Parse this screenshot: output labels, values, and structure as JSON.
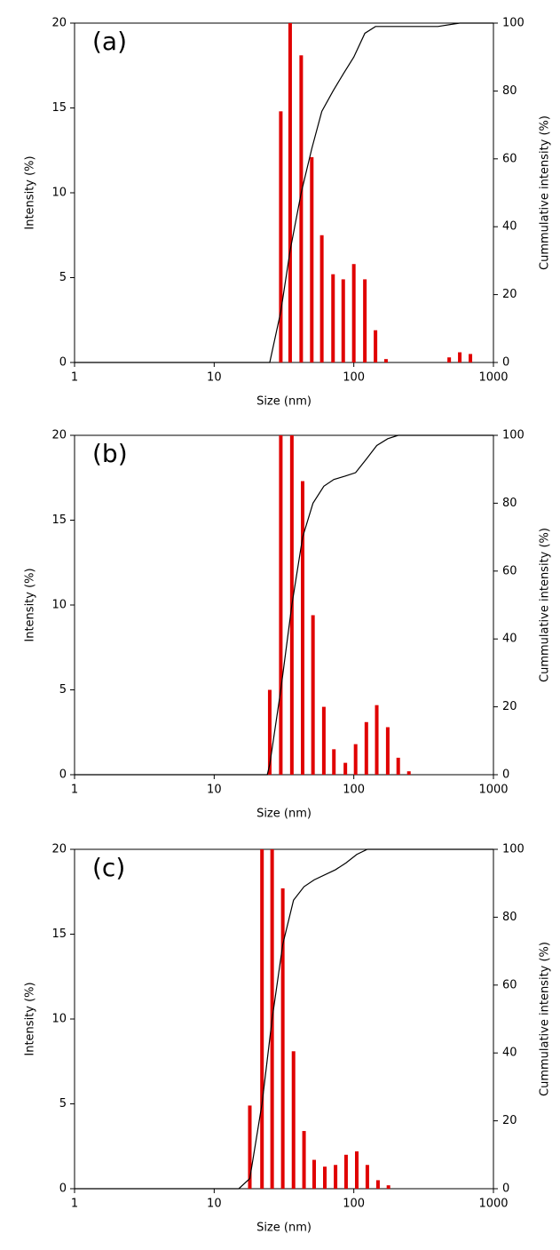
{
  "chart_data": [
    {
      "type": "bar",
      "annotation": "(a)",
      "x_label": "Size (nm)",
      "y_label": "Intensity (%)",
      "y2_label": "Cummulative intensity (%)",
      "log_x": true,
      "xlim": [
        1,
        1000
      ],
      "xticks": [
        1,
        10,
        100,
        1000
      ],
      "ylim": [
        0,
        20
      ],
      "yticks": [
        0,
        5,
        10,
        15,
        20
      ],
      "y2lim": [
        0,
        100
      ],
      "y2ticks": [
        0,
        20,
        40,
        60,
        80,
        100
      ],
      "series": [
        {
          "type": "bar",
          "color": "#e00000",
          "x": [
            30,
            35,
            42,
            50,
            59,
            71,
            84,
            100,
            120,
            143,
            170,
            482,
            574,
            684
          ],
          "values": [
            14.8,
            20,
            18.1,
            12.1,
            7.5,
            5.2,
            4.9,
            5.8,
            4.9,
            1.9,
            0.2,
            0.3,
            0.6,
            0.5
          ]
        },
        {
          "type": "line",
          "axis": "y2",
          "color": "#000000",
          "x": [
            1,
            25,
            30,
            35,
            42,
            50,
            59,
            71,
            84,
            100,
            120,
            143,
            170,
            400,
            574,
            1000
          ],
          "values": [
            0,
            0,
            15,
            33,
            50,
            63,
            74,
            80,
            85,
            90,
            97,
            99,
            99,
            99,
            100,
            100
          ]
        }
      ]
    },
    {
      "type": "bar",
      "annotation": "(b)",
      "x_label": "Size (nm)",
      "y_label": "Intensity (%)",
      "y2_label": "Cummulative intensity (%)",
      "log_x": true,
      "xlim": [
        1,
        1000
      ],
      "xticks": [
        1,
        10,
        100,
        1000
      ],
      "ylim": [
        0,
        20
      ],
      "yticks": [
        0,
        5,
        10,
        15,
        20
      ],
      "y2lim": [
        0,
        100
      ],
      "y2ticks": [
        0,
        20,
        40,
        60,
        80,
        100
      ],
      "series": [
        {
          "type": "bar",
          "color": "#e00000",
          "x": [
            25,
            30,
            36,
            43,
            51,
            61,
            72,
            87,
            103,
            123,
            146,
            175,
            208,
            248
          ],
          "values": [
            5,
            20,
            20,
            17.3,
            9.4,
            4,
            1.5,
            0.7,
            1.8,
            3.1,
            4.1,
            2.8,
            1,
            0.2
          ]
        },
        {
          "type": "line",
          "axis": "y2",
          "color": "#000000",
          "x": [
            1,
            24,
            25,
            30,
            36,
            43,
            51,
            61,
            72,
            87,
            103,
            123,
            146,
            175,
            208,
            1000
          ],
          "values": [
            0,
            0,
            3,
            25,
            50,
            70,
            80,
            85,
            87,
            88,
            89,
            93,
            97,
            99,
            100,
            100
          ]
        }
      ]
    },
    {
      "type": "bar",
      "annotation": "(c)",
      "x_label": "Size (nm)",
      "y_label": "Intensity (%)",
      "y2_label": "Cummulative intensity (%)",
      "log_x": true,
      "xlim": [
        1,
        1000
      ],
      "xticks": [
        1,
        10,
        100,
        1000
      ],
      "ylim": [
        0,
        20
      ],
      "yticks": [
        0,
        5,
        10,
        15,
        20
      ],
      "y2lim": [
        0,
        100
      ],
      "y2ticks": [
        0,
        20,
        40,
        60,
        80,
        100
      ],
      "series": [
        {
          "type": "bar",
          "color": "#e00000",
          "x": [
            18,
            22,
            26,
            31,
            37,
            44,
            52,
            62,
            74,
            88,
            105,
            125,
            149,
            177
          ],
          "values": [
            4.9,
            20,
            20,
            17.7,
            8.1,
            3.4,
            1.7,
            1.3,
            1.4,
            2,
            2.2,
            1.4,
            0.5,
            0.2
          ]
        },
        {
          "type": "line",
          "axis": "y2",
          "color": "#000000",
          "x": [
            1,
            15,
            18,
            22,
            26,
            31,
            37,
            44,
            52,
            74,
            88,
            105,
            125,
            1000
          ],
          "values": [
            0,
            0,
            3,
            25,
            50,
            72,
            85,
            89,
            91,
            94,
            96,
            98.5,
            100,
            100
          ]
        }
      ]
    }
  ]
}
